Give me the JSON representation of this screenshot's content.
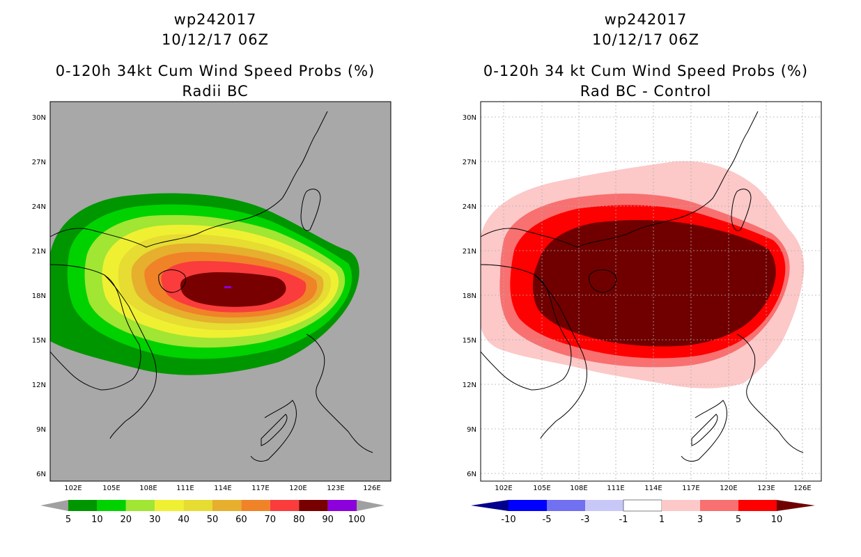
{
  "chart_data": [
    {
      "type": "heatmap",
      "storm_id": "wp242017",
      "date": "10/12/17 06Z",
      "title": "0-120h 34kt Cum Wind Speed Probs (%)",
      "subtitle": "Radii BC",
      "background_color": "#a8a8a8",
      "x_ticks": [
        "102E",
        "105E",
        "108E",
        "111E",
        "114E",
        "117E",
        "120E",
        "123E",
        "126E"
      ],
      "y_ticks": [
        "30N",
        "27N",
        "24N",
        "21N",
        "18N",
        "15N",
        "12N",
        "9N",
        "6N"
      ],
      "xlim": [
        100.5,
        127.0
      ],
      "ylim": [
        5.5,
        31.0
      ],
      "grid": false,
      "colorbar": {
        "labels": [
          "5",
          "10",
          "20",
          "30",
          "40",
          "50",
          "60",
          "70",
          "80",
          "90",
          "100"
        ],
        "colors": [
          "#009600",
          "#00d200",
          "#a0e632",
          "#f0f032",
          "#e6dc32",
          "#e6af2d",
          "#f08228",
          "#fa3c3c",
          "#780000",
          "#8c00dc"
        ],
        "end_colors": [
          "#a0a0a0",
          "#a0a0a0"
        ]
      },
      "contour_fill_colors": [
        "#009600",
        "#00d200",
        "#a0e632",
        "#f0f032",
        "#e6dc32",
        "#e6af2d",
        "#f08228",
        "#fa3c3c",
        "#780000"
      ]
    },
    {
      "type": "heatmap",
      "storm_id": "wp242017",
      "date": "10/12/17 06Z",
      "title": "0-120h 34 kt Cum Wind Speed Probs (%)",
      "subtitle": "Rad BC - Control",
      "background_color": "#ffffff",
      "x_ticks": [
        "102E",
        "105E",
        "108E",
        "111E",
        "114E",
        "117E",
        "120E",
        "123E",
        "126E"
      ],
      "y_ticks": [
        "30N",
        "27N",
        "24N",
        "21N",
        "18N",
        "15N",
        "12N",
        "9N",
        "6N"
      ],
      "xlim": [
        100.5,
        127.0
      ],
      "ylim": [
        5.5,
        31.0
      ],
      "grid": true,
      "colorbar": {
        "labels": [
          "-10",
          "-5",
          "-3",
          "-1",
          "1",
          "3",
          "5",
          "10"
        ],
        "colors": [
          "#0000ff",
          "#7070f0",
          "#c8c8f8",
          "#ffffff",
          "#fcc8c8",
          "#f87070",
          "#ff0000"
        ],
        "end_colors": [
          "#00008c",
          "#700000"
        ]
      },
      "contour_fill_colors": [
        "#fcc8c8",
        "#f87070",
        "#ff0000",
        "#700000"
      ]
    }
  ]
}
